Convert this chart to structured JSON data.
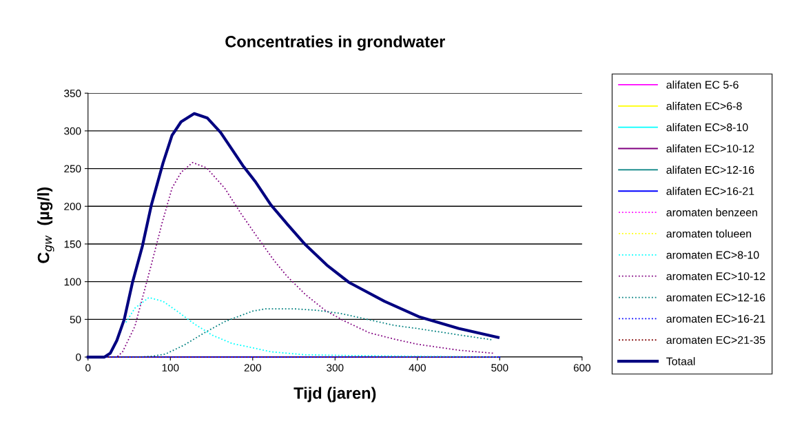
{
  "chart_data": {
    "type": "line",
    "title": "Concentraties in grondwater",
    "xlabel": "Tijd (jaren)",
    "ylabel": "C$_{gw}$  (µg/l)",
    "xlim": [
      0,
      600
    ],
    "xticks": [
      0,
      100,
      200,
      300,
      400,
      500,
      600
    ],
    "ylim": [
      0,
      350
    ],
    "yticks": [
      0,
      50,
      100,
      150,
      200,
      250,
      300,
      350
    ],
    "grid": "y",
    "legend": "right",
    "marker": "none",
    "series": [
      {
        "name": "alifaten EC 5-6",
        "color": "#ff00ff",
        "line_style": "solid"
      },
      {
        "name": "alifaten EC>6-8",
        "color": "#ffff00",
        "line_style": "solid"
      },
      {
        "name": "alifaten EC>8-10",
        "color": "#00ffff",
        "line_style": "solid"
      },
      {
        "name": "alifaten EC>10-12",
        "color": "#800080",
        "line_style": "solid"
      },
      {
        "name": "alifaten EC>12-16",
        "color": "#008080",
        "line_style": "solid"
      },
      {
        "name": "alifaten EC>16-21",
        "color": "#0000ff",
        "line_style": "solid",
        "x": [
          0,
          500
        ],
        "values": [
          0,
          0
        ]
      },
      {
        "name": "aromaten benzeen",
        "color": "#ff00ff",
        "line_style": "dotted"
      },
      {
        "name": "aromaten tolueen",
        "color": "#ffff00",
        "line_style": "dotted"
      },
      {
        "name": "aromaten EC>8-10",
        "color": "#00ffff",
        "line_style": "dotted",
        "x": [
          46,
          57,
          74,
          91,
          108,
          129,
          151,
          175,
          197,
          222,
          264,
          320,
          400,
          500
        ],
        "values": [
          46,
          65,
          79,
          74,
          61,
          44,
          29,
          18,
          13,
          7,
          3,
          2,
          1,
          0
        ]
      },
      {
        "name": "aromaten EC>10-12",
        "color": "#800080",
        "line_style": "dotted",
        "x": [
          0,
          35,
          42,
          57,
          66,
          77,
          90,
          102,
          113,
          127,
          144,
          166,
          186,
          205,
          226,
          241,
          264,
          288,
          311,
          342,
          375,
          400,
          451,
          493
        ],
        "values": [
          0,
          0,
          7,
          41,
          78,
          123,
          178,
          224,
          245,
          258,
          251,
          224,
          190,
          160,
          128,
          108,
          83,
          62,
          48,
          32,
          23,
          17,
          9,
          5
        ]
      },
      {
        "name": "aromaten EC>12-16",
        "color": "#008080",
        "line_style": "dotted",
        "x": [
          0,
          60,
          77,
          94,
          117,
          141,
          166,
          200,
          216,
          250,
          278,
          306,
          339,
          372,
          399,
          423,
          465,
          490
        ],
        "values": [
          0,
          0,
          1,
          4,
          16,
          32,
          47,
          61,
          64,
          64,
          62,
          58,
          50,
          42,
          38,
          34,
          27,
          23
        ]
      },
      {
        "name": "aromaten EC>16-21",
        "color": "#0000ff",
        "line_style": "dotted"
      },
      {
        "name": "aromaten EC>21-35",
        "color": "#800000",
        "line_style": "dotted",
        "x": [
          0,
          500
        ],
        "values": [
          0,
          0
        ]
      },
      {
        "name": "Totaal",
        "color": "#000080",
        "line_style": "solid",
        "x": [
          0,
          20,
          27,
          35,
          44,
          54,
          66,
          77,
          91,
          102,
          113,
          129,
          145,
          161,
          188,
          203,
          222,
          243,
          264,
          290,
          317,
          360,
          403,
          450,
          498
        ],
        "values": [
          0,
          0,
          5,
          22,
          50,
          99,
          147,
          202,
          257,
          294,
          312,
          323,
          317,
          298,
          254,
          233,
          202,
          175,
          149,
          122,
          99,
          74,
          53,
          38,
          26
        ]
      }
    ]
  }
}
